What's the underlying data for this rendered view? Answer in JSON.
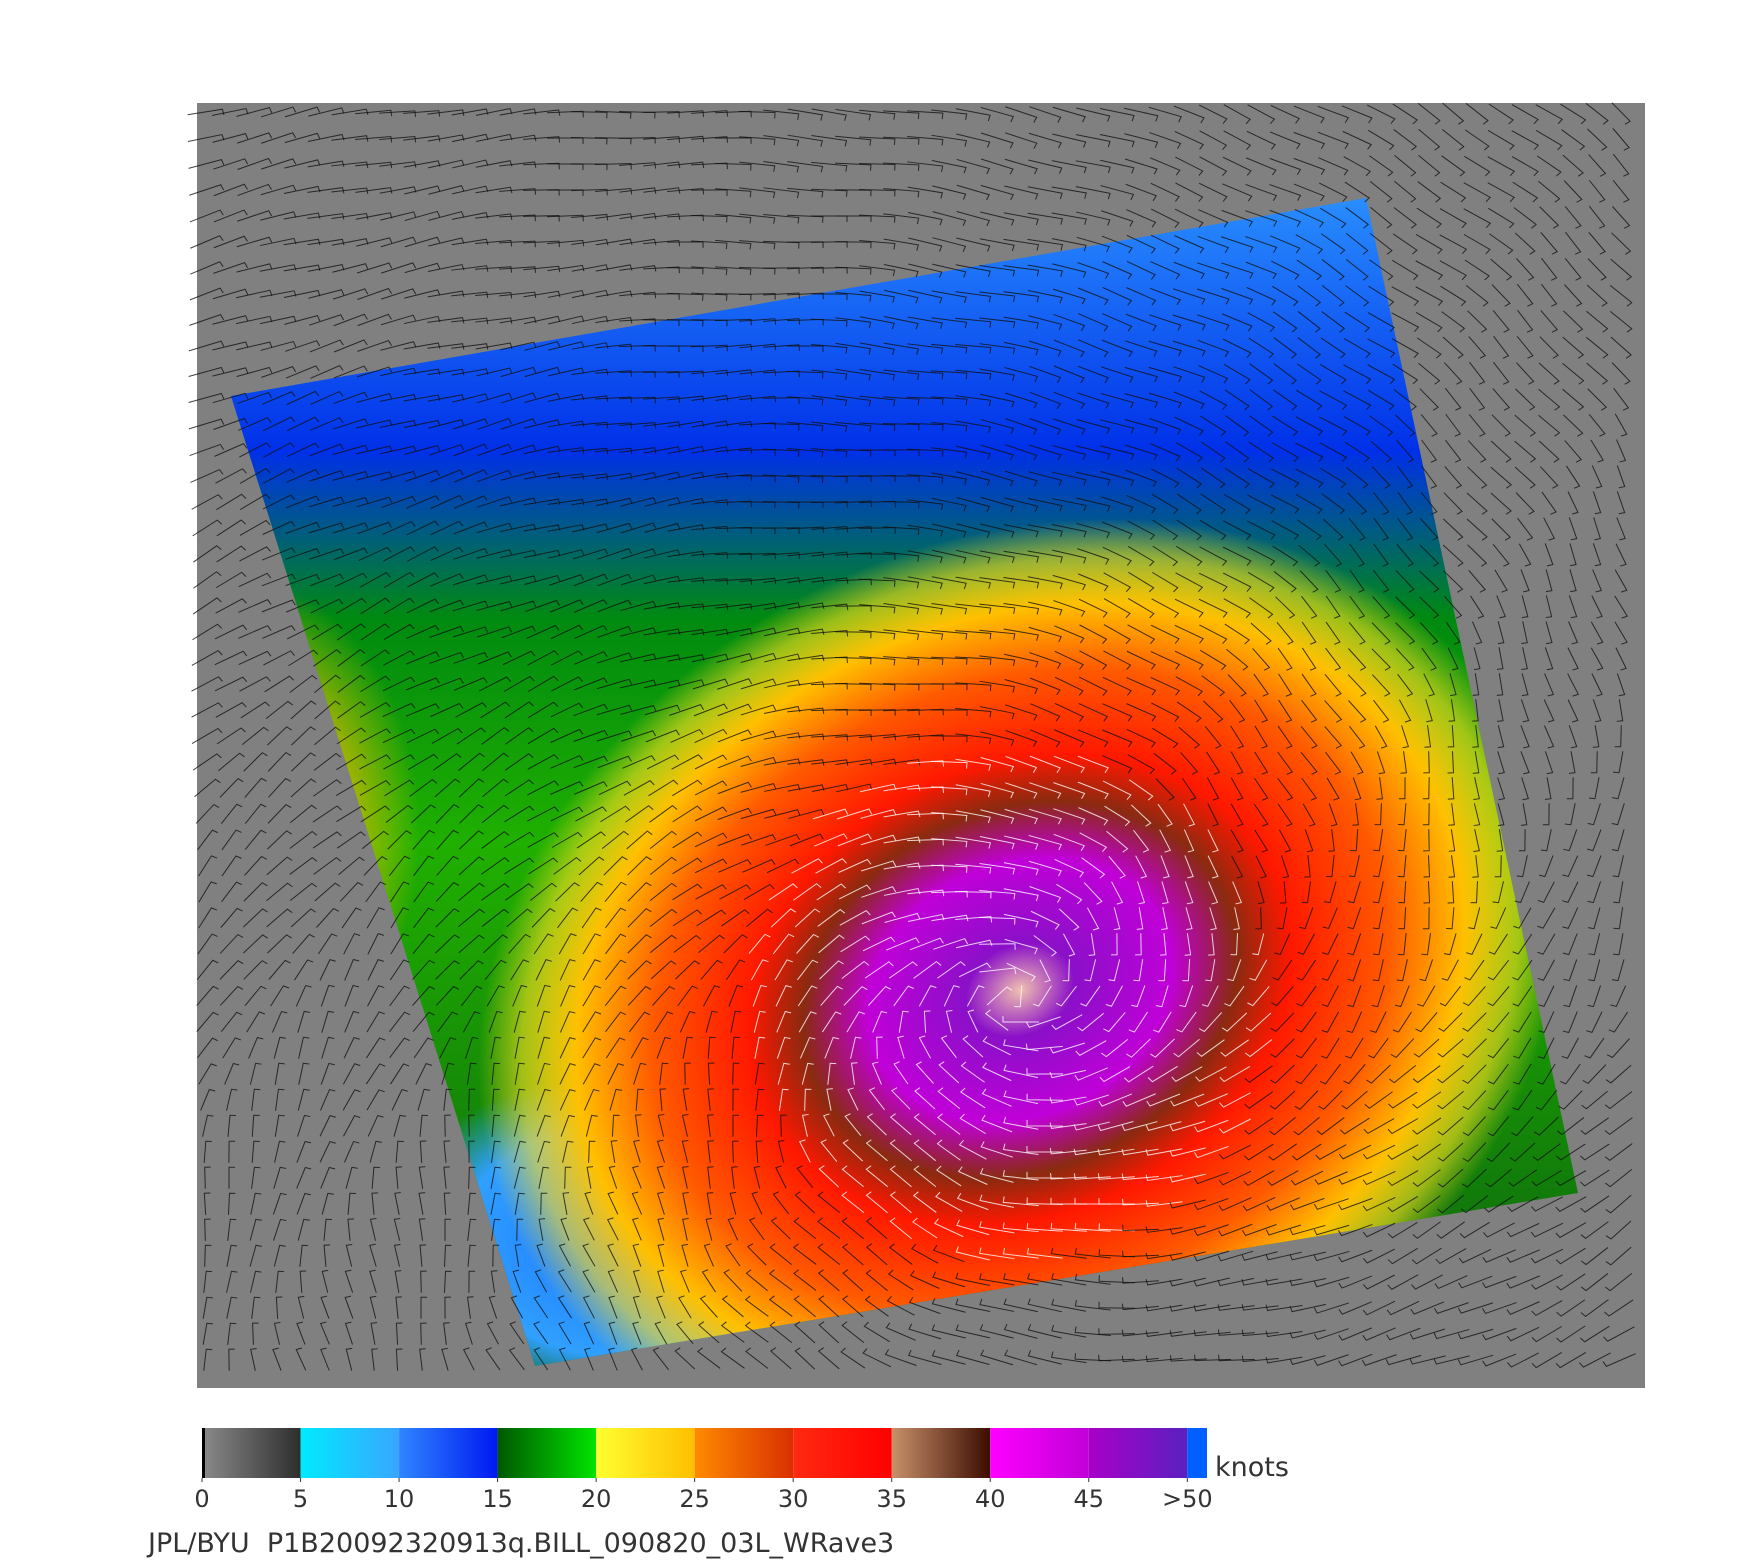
{
  "colorbar": {
    "ticks": [
      0,
      5,
      10,
      15,
      20,
      25,
      30,
      35,
      40,
      45,
      {
        "value": 50,
        "label": ">50"
      }
    ],
    "lim": [
      0,
      51
    ],
    "unit": "knots",
    "colors": [
      [
        "#8a8a8a",
        "#2e2e2e"
      ],
      [
        "#00eaff",
        "#39a6ff"
      ],
      [
        "#2f86ff",
        "#0018f0"
      ],
      [
        "#005800",
        "#00e400"
      ],
      [
        "#ffff30",
        "#ffbe00"
      ],
      [
        "#ff8a00",
        "#d83000"
      ],
      [
        "#ff2a10",
        "#ff0000"
      ],
      [
        "#c8906a",
        "#3c0c00"
      ],
      [
        "#ff00ff",
        "#c000d8"
      ],
      [
        "#a800c8",
        "#5a20c0"
      ]
    ]
  },
  "footer": "JPL/BYU  P1B20092320913q.BILL_090820_03L_WRave3"
}
